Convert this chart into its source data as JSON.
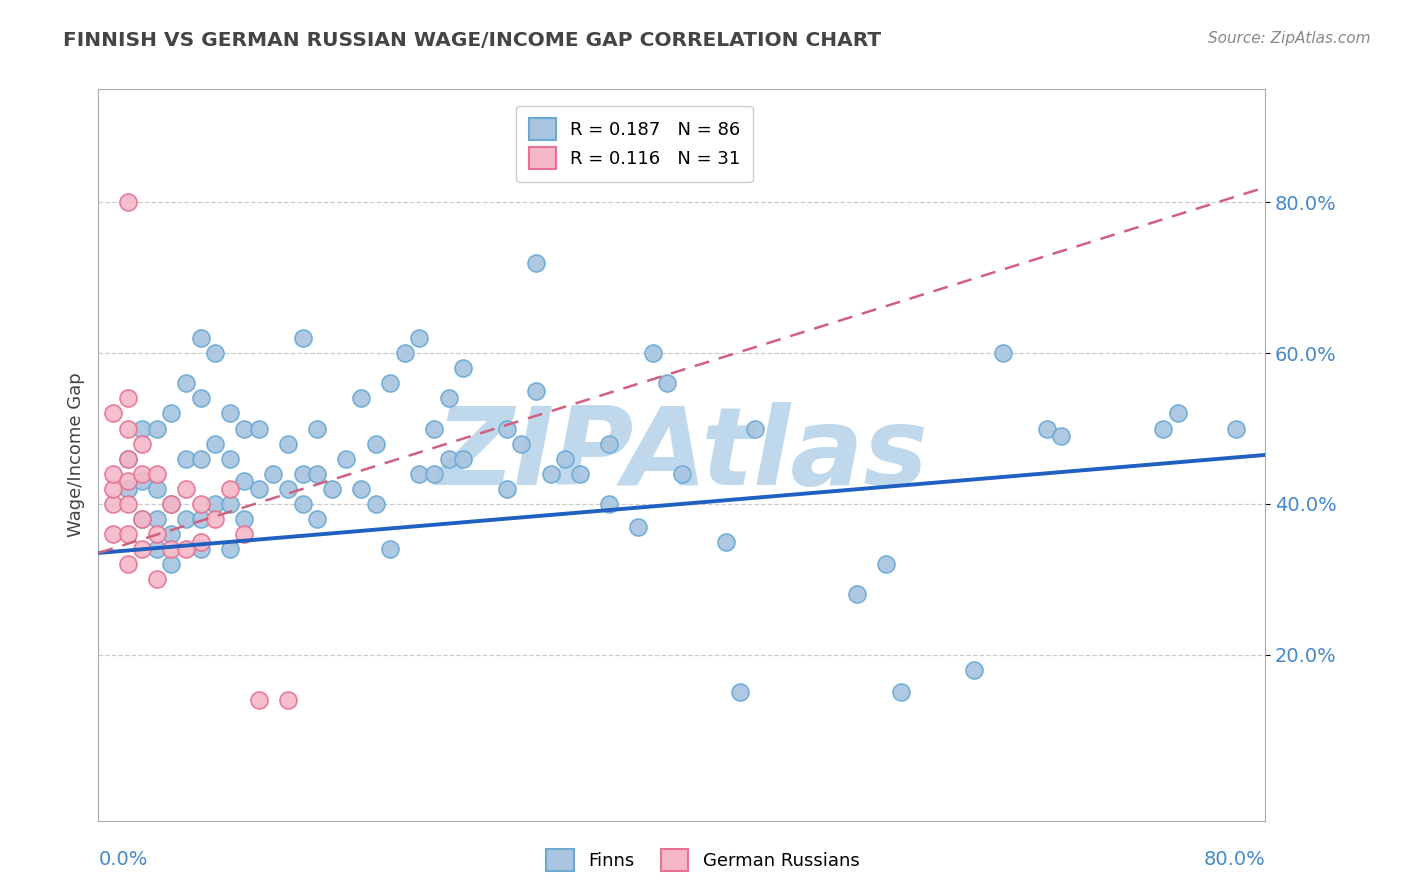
{
  "title": "FINNISH VS GERMAN RUSSIAN WAGE/INCOME GAP CORRELATION CHART",
  "source": "Source: ZipAtlas.com",
  "ylabel": "Wage/Income Gap",
  "ytick_labels": [
    "20.0%",
    "40.0%",
    "60.0%",
    "80.0%"
  ],
  "ytick_values": [
    0.2,
    0.4,
    0.6,
    0.8
  ],
  "xlim": [
    0.0,
    0.8
  ],
  "ylim": [
    -0.02,
    0.95
  ],
  "legend_r1": "R = 0.187",
  "legend_n1": "N = 86",
  "legend_r2": "R = 0.116",
  "legend_n2": "N = 31",
  "finns_color": "#a8c4e0",
  "finns_edge_color": "#6aaad4",
  "german_russians_color": "#f4b8c8",
  "german_russians_edge_color": "#e87090",
  "trend_finns_color": "#2060c0",
  "trend_gr_color": "#d06080",
  "watermark": "ZIPAtlas",
  "watermark_color": "#c0d8ec",
  "finns_x": [
    0.02,
    0.02,
    0.03,
    0.03,
    0.03,
    0.04,
    0.04,
    0.04,
    0.04,
    0.05,
    0.05,
    0.05,
    0.05,
    0.06,
    0.06,
    0.06,
    0.07,
    0.07,
    0.07,
    0.07,
    0.07,
    0.08,
    0.08,
    0.08,
    0.09,
    0.09,
    0.09,
    0.09,
    0.1,
    0.1,
    0.1,
    0.11,
    0.11,
    0.12,
    0.13,
    0.13,
    0.14,
    0.14,
    0.14,
    0.15,
    0.15,
    0.15,
    0.16,
    0.17,
    0.18,
    0.18,
    0.19,
    0.19,
    0.2,
    0.2,
    0.21,
    0.22,
    0.22,
    0.23,
    0.23,
    0.24,
    0.24,
    0.25,
    0.25,
    0.28,
    0.28,
    0.29,
    0.3,
    0.3,
    0.31,
    0.32,
    0.33,
    0.35,
    0.35,
    0.37,
    0.38,
    0.39,
    0.4,
    0.43,
    0.44,
    0.45,
    0.52,
    0.54,
    0.55,
    0.6,
    0.62,
    0.65,
    0.66,
    0.73,
    0.74,
    0.78
  ],
  "finns_y": [
    0.42,
    0.46,
    0.38,
    0.43,
    0.5,
    0.34,
    0.38,
    0.42,
    0.5,
    0.32,
    0.36,
    0.4,
    0.52,
    0.38,
    0.46,
    0.56,
    0.34,
    0.38,
    0.46,
    0.54,
    0.62,
    0.4,
    0.48,
    0.6,
    0.34,
    0.4,
    0.46,
    0.52,
    0.38,
    0.43,
    0.5,
    0.42,
    0.5,
    0.44,
    0.42,
    0.48,
    0.4,
    0.44,
    0.62,
    0.38,
    0.44,
    0.5,
    0.42,
    0.46,
    0.42,
    0.54,
    0.4,
    0.48,
    0.34,
    0.56,
    0.6,
    0.44,
    0.62,
    0.44,
    0.5,
    0.46,
    0.54,
    0.46,
    0.58,
    0.42,
    0.5,
    0.48,
    0.72,
    0.55,
    0.44,
    0.46,
    0.44,
    0.4,
    0.48,
    0.37,
    0.6,
    0.56,
    0.44,
    0.35,
    0.15,
    0.5,
    0.28,
    0.32,
    0.15,
    0.18,
    0.6,
    0.5,
    0.49,
    0.5,
    0.52,
    0.5
  ],
  "gr_x": [
    0.01,
    0.01,
    0.01,
    0.01,
    0.01,
    0.02,
    0.02,
    0.02,
    0.02,
    0.02,
    0.02,
    0.02,
    0.02,
    0.03,
    0.03,
    0.03,
    0.03,
    0.04,
    0.04,
    0.04,
    0.05,
    0.05,
    0.06,
    0.06,
    0.07,
    0.07,
    0.08,
    0.09,
    0.1,
    0.11,
    0.13
  ],
  "gr_y": [
    0.36,
    0.4,
    0.42,
    0.44,
    0.52,
    0.32,
    0.36,
    0.4,
    0.43,
    0.46,
    0.5,
    0.54,
    0.8,
    0.34,
    0.38,
    0.44,
    0.48,
    0.3,
    0.36,
    0.44,
    0.34,
    0.4,
    0.34,
    0.42,
    0.35,
    0.4,
    0.38,
    0.42,
    0.36,
    0.14,
    0.14
  ],
  "trend_finns_x0": 0.0,
  "trend_finns_y0": 0.335,
  "trend_finns_x1": 0.8,
  "trend_finns_y1": 0.465,
  "trend_gr_x0": 0.0,
  "trend_gr_y0": 0.335,
  "trend_gr_x1": 0.8,
  "trend_gr_y1": 0.82,
  "background_color": "#ffffff",
  "grid_color": "#cccccc",
  "axis_color": "#aaaaaa",
  "label_color": "#4488cc",
  "title_color": "#444444"
}
